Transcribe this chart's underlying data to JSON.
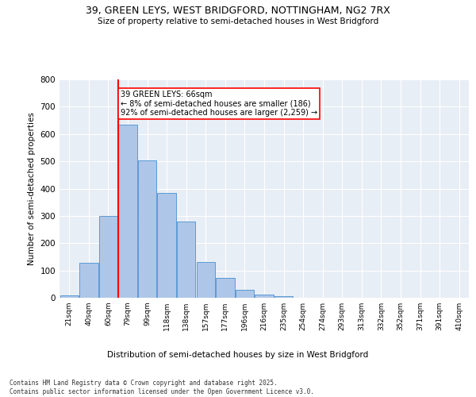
{
  "title_line1": "39, GREEN LEYS, WEST BRIDGFORD, NOTTINGHAM, NG2 7RX",
  "title_line2": "Size of property relative to semi-detached houses in West Bridgford",
  "xlabel": "Distribution of semi-detached houses by size in West Bridgford",
  "ylabel": "Number of semi-detached properties",
  "categories": [
    "21sqm",
    "40sqm",
    "60sqm",
    "79sqm",
    "99sqm",
    "118sqm",
    "138sqm",
    "157sqm",
    "177sqm",
    "196sqm",
    "216sqm",
    "235sqm",
    "254sqm",
    "274sqm",
    "293sqm",
    "313sqm",
    "332sqm",
    "352sqm",
    "371sqm",
    "391sqm",
    "410sqm"
  ],
  "values": [
    10,
    128,
    300,
    635,
    502,
    385,
    278,
    132,
    72,
    28,
    13,
    7,
    0,
    0,
    0,
    0,
    0,
    0,
    0,
    0,
    0
  ],
  "bar_color": "#aec6e8",
  "bar_edge_color": "#5b9bd5",
  "red_line_bin_index": 2,
  "annotation_text": "39 GREEN LEYS: 66sqm\n← 8% of semi-detached houses are smaller (186)\n92% of semi-detached houses are larger (2,259) →",
  "ylim": [
    0,
    800
  ],
  "yticks": [
    0,
    100,
    200,
    300,
    400,
    500,
    600,
    700,
    800
  ],
  "bg_color": "#e8eef5",
  "footer_line1": "Contains HM Land Registry data © Crown copyright and database right 2025.",
  "footer_line2": "Contains public sector information licensed under the Open Government Licence v3.0."
}
